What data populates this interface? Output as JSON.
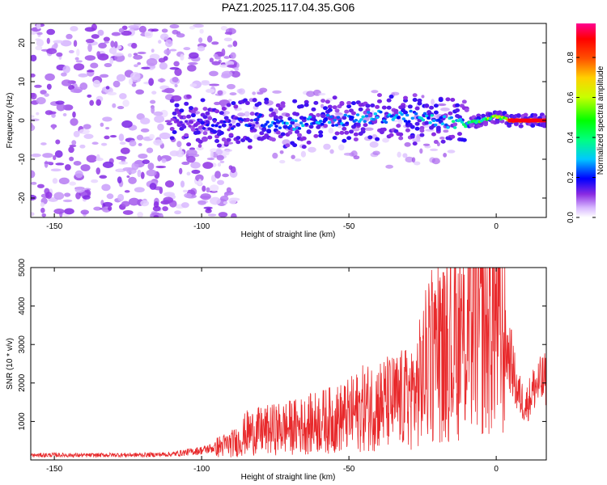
{
  "title": "PAZ1.2025.117.04.35.G06",
  "chart_data": [
    {
      "type": "heatmap",
      "xlabel": "Height of straight line (km)",
      "ylabel": "Frequency (Hz)",
      "xlim": [
        -158,
        17
      ],
      "ylim": [
        -25,
        25
      ],
      "xticks": [
        -150,
        -100,
        -50,
        0
      ],
      "yticks": [
        -20,
        -10,
        0,
        10,
        20
      ],
      "colorbar": {
        "label": "Normalized spectral amplitude",
        "range": [
          0,
          0.97
        ],
        "ticks": [
          0.0,
          0.2,
          0.4,
          0.6,
          0.8
        ],
        "colors": [
          "#ffffff",
          "#b07cff",
          "#6a00ff",
          "#0000ff",
          "#00e5ff",
          "#00ff40",
          "#d6ff00",
          "#ff8000",
          "#ff0000",
          "#ff0080"
        ]
      },
      "ridge": [
        {
          "x": -108,
          "y": 0,
          "amp": 0.15
        },
        {
          "x": -100,
          "y": -1,
          "amp": 0.18
        },
        {
          "x": -90,
          "y": -1,
          "amp": 0.2
        },
        {
          "x": -80,
          "y": 0,
          "amp": 0.25
        },
        {
          "x": -70,
          "y": -1,
          "amp": 0.3
        },
        {
          "x": -60,
          "y": 0,
          "amp": 0.28
        },
        {
          "x": -50,
          "y": 0,
          "amp": 0.3
        },
        {
          "x": -40,
          "y": 1,
          "amp": 0.3
        },
        {
          "x": -30,
          "y": 1,
          "amp": 0.3
        },
        {
          "x": -20,
          "y": 0,
          "amp": 0.32
        },
        {
          "x": -12,
          "y": -1,
          "amp": 0.4
        },
        {
          "x": -5,
          "y": 0,
          "amp": 0.55
        },
        {
          "x": 0,
          "y": 1,
          "amp": 0.7
        },
        {
          "x": 5,
          "y": 0,
          "amp": 0.8
        },
        {
          "x": 10,
          "y": 0,
          "amp": 0.9
        },
        {
          "x": 17,
          "y": 0,
          "amp": 0.97
        }
      ]
    },
    {
      "type": "line",
      "xlabel": "Height of straight line (km)",
      "ylabel": "SNR (10 * v/v)",
      "xlim": [
        -158,
        17
      ],
      "ylim": [
        0,
        5000
      ],
      "xticks": [
        -150,
        -100,
        -50,
        0
      ],
      "yticks": [
        1000,
        2000,
        3000,
        4000,
        5000
      ],
      "color": "#e8292b",
      "series": [
        {
          "x": [
            -158,
            -150,
            -140,
            -130,
            -120,
            -110,
            -100,
            -95,
            -90,
            -87,
            -85,
            -80,
            -75,
            -70,
            -65,
            -60,
            -55,
            -50,
            -45,
            -40,
            -35,
            -30,
            -27,
            -25,
            -23,
            -20,
            -18,
            -15,
            -12,
            -10,
            -8,
            -5,
            -3,
            -1,
            0,
            2,
            5,
            7,
            10,
            13,
            15,
            17
          ],
          "y": [
            120,
            130,
            120,
            130,
            130,
            150,
            250,
            330,
            420,
            500,
            700,
            750,
            800,
            850,
            900,
            1000,
            1050,
            1150,
            1350,
            1450,
            1500,
            1600,
            1800,
            2200,
            2600,
            2750,
            2800,
            2900,
            3000,
            3200,
            3600,
            3500,
            3300,
            3800,
            3700,
            3100,
            2600,
            1800,
            1400,
            1900,
            2000,
            2100
          ]
        }
      ]
    }
  ]
}
